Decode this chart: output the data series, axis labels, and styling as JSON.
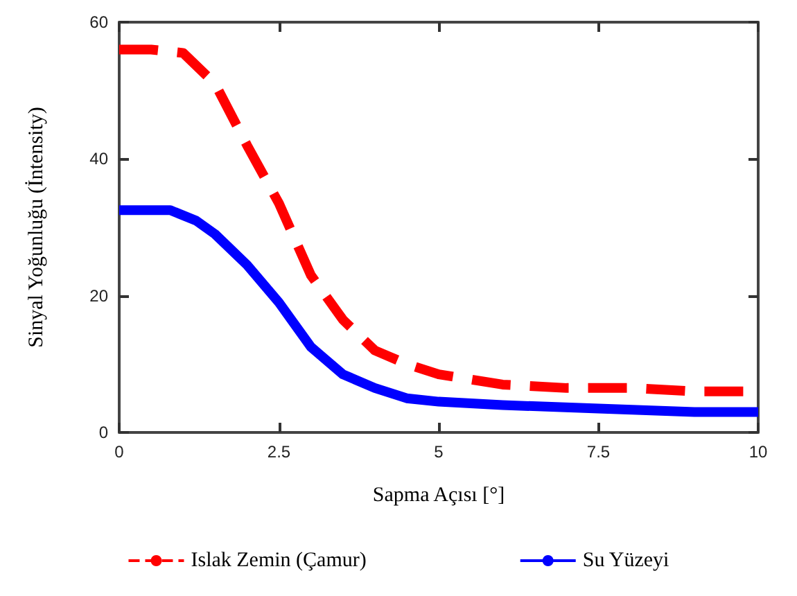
{
  "chart_data": {
    "type": "line",
    "xlabel": "Sapma Açısı [°]",
    "ylabel": "Sinyal Yoğunluğu (İntensity)",
    "xlim": [
      0,
      10
    ],
    "xticks": [
      0,
      2.5,
      5,
      7.5,
      10
    ],
    "ylim": [
      0,
      60
    ],
    "yticks": [
      0,
      20,
      40,
      60
    ],
    "grid": false,
    "legend": "bottom",
    "marker": "none",
    "series": [
      {
        "name": "Islak Zemin (Çamur)",
        "color": "#ff0000",
        "line_style": "dashed",
        "x": [
          0,
          0.5,
          1,
          1.5,
          2,
          2.5,
          3,
          3.5,
          4,
          4.5,
          5,
          6,
          7,
          8,
          9,
          10
        ],
        "values": [
          56,
          56,
          55.5,
          51,
          42,
          33.5,
          23,
          16.5,
          12,
          10,
          8.5,
          7,
          6.5,
          6.5,
          6,
          6
        ]
      },
      {
        "name": "Su Yüzeyi",
        "color": "#0000ff",
        "line_style": "solid",
        "x": [
          0,
          0.5,
          0.8,
          1.2,
          1.5,
          2,
          2.5,
          3,
          3.5,
          4,
          4.5,
          5,
          6,
          7.5,
          9,
          10
        ],
        "values": [
          32.5,
          32.5,
          32.5,
          31,
          29,
          24.5,
          19,
          12.5,
          8.5,
          6.5,
          5,
          4.5,
          4,
          3.5,
          3,
          3
        ]
      }
    ]
  }
}
